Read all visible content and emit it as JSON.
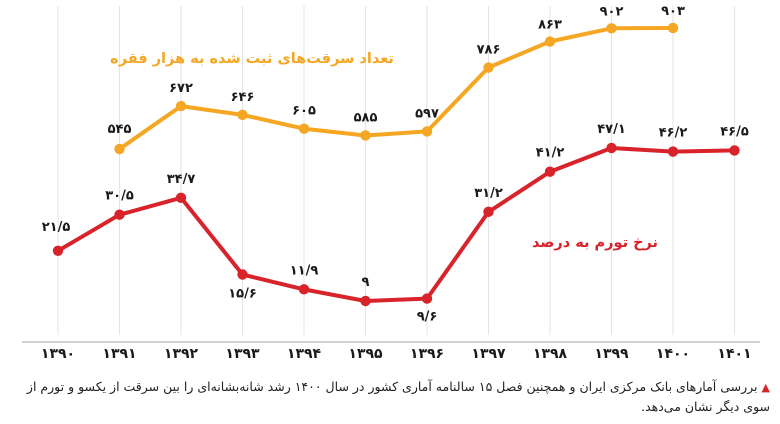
{
  "chart_data": {
    "type": "line",
    "categories": [
      "۱۳۹۰",
      "۱۳۹۱",
      "۱۳۹۲",
      "۱۳۹۳",
      "۱۳۹۴",
      "۱۳۹۵",
      "۱۳۹۶",
      "۱۳۹۷",
      "۱۳۹۸",
      "۱۳۹۹",
      "۱۴۰۰",
      "۱۴۰۱"
    ],
    "series": [
      {
        "name": "تعداد سرقت‌های ثبت شده به هزار فقره",
        "color": "#f5a623",
        "values": [
          null,
          545,
          672,
          646,
          605,
          585,
          597,
          786,
          863,
          902,
          903,
          null
        ],
        "labels": [
          null,
          "۵۴۵",
          "۶۷۲",
          "۶۴۶",
          "۶۰۵",
          "۵۸۵",
          "۵۹۷",
          "۷۸۶",
          "۸۶۳",
          "۹۰۲",
          "۹۰۳",
          null
        ]
      },
      {
        "name": "نرخ تورم به درصد",
        "color": "#d8232a",
        "values": [
          21.5,
          30.5,
          34.7,
          15.6,
          11.9,
          9,
          9.6,
          31.2,
          41.2,
          47.1,
          46.2,
          46.5
        ],
        "labels": [
          "۲۱/۵",
          "۳۰/۵",
          "۳۴/۷",
          "۱۵/۶",
          "۱۱/۹",
          "۹",
          "۹/۶",
          "۳۱/۲",
          "۴۱/۲",
          "۴۷/۱",
          "۴۶/۲",
          "۴۶/۵"
        ]
      }
    ],
    "grid": "vertical"
  },
  "caption": "بررسی آمارهای بانک مرکزی ایران و همچنین فصل ۱۵ سالنامه آماری کشور در سال ۱۴۰۰ رشد شانه‌بشانه‌ای را بین سرقت از یکسو و تورم از سوی دیگر نشان می‌دهد.",
  "caption_marker": "▲"
}
